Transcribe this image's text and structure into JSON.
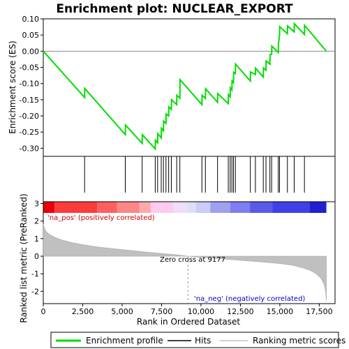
{
  "chart_data": {
    "type": "line",
    "title": "Enrichment plot: NUCLEAR_EXPORT",
    "xlabel": "Rank in Ordered Dataset",
    "ylabel_top": "Enrichment score (ES)",
    "ylabel_bottom": "Ranked list metric (PreRanked)",
    "xlim": [
      0,
      18500
    ],
    "es_ylim": [
      -0.325,
      0.1
    ],
    "metric_ylim": [
      -2.7,
      3.1
    ],
    "x_ticks": [
      0,
      2500,
      5000,
      7500,
      10000,
      12500,
      15000,
      17500
    ],
    "x_tick_labels": [
      "0",
      "2,500",
      "5,000",
      "7,500",
      "10,000",
      "12,500",
      "15,000",
      "17,500"
    ],
    "es_ticks": [
      0.1,
      0.05,
      0.0,
      -0.05,
      -0.1,
      -0.15,
      -0.2,
      -0.25,
      -0.3
    ],
    "es_tick_labels": [
      "0.10",
      "0.05",
      "0.00",
      "-0.05",
      "-0.10",
      "-0.15",
      "-0.20",
      "-0.25",
      "-0.30"
    ],
    "metric_ticks": [
      3,
      2,
      1,
      0,
      -1,
      -2
    ],
    "metric_tick_labels": [
      "3",
      "2",
      "1",
      "0",
      "-1",
      "-2"
    ],
    "series": [
      {
        "name": "Enrichment profile",
        "color": "#00dd00",
        "x": [
          0,
          2620,
          2630,
          5200,
          5210,
          6270,
          6280,
          7100,
          7110,
          7250,
          7260,
          7480,
          7490,
          7620,
          7630,
          7780,
          7790,
          7950,
          7960,
          8120,
          8130,
          8460,
          8470,
          8660,
          8670,
          10060,
          10070,
          10280,
          10290,
          11050,
          11060,
          11730,
          11740,
          11850,
          11860,
          11960,
          11970,
          12060,
          12070,
          12180,
          12190,
          13130,
          13140,
          13450,
          13460,
          13950,
          13960,
          14120,
          14130,
          14370,
          14380,
          14480,
          14490,
          14900,
          14910,
          14980,
          14990,
          15480,
          15490,
          15910,
          15920,
          16560,
          16570,
          17950
        ],
        "y": [
          0.0,
          -0.143,
          -0.115,
          -0.258,
          -0.228,
          -0.285,
          -0.258,
          -0.302,
          -0.275,
          -0.283,
          -0.255,
          -0.268,
          -0.238,
          -0.246,
          -0.216,
          -0.223,
          -0.194,
          -0.2,
          -0.172,
          -0.18,
          -0.15,
          -0.165,
          -0.136,
          -0.145,
          -0.088,
          -0.165,
          -0.136,
          -0.146,
          -0.116,
          -0.158,
          -0.131,
          -0.162,
          -0.134,
          -0.141,
          -0.113,
          -0.12,
          -0.092,
          -0.097,
          -0.065,
          -0.069,
          -0.04,
          -0.092,
          -0.064,
          -0.072,
          -0.052,
          -0.08,
          -0.052,
          -0.059,
          -0.03,
          -0.04,
          -0.011,
          -0.01,
          0.016,
          -0.004,
          0.022,
          0.05,
          0.076,
          0.054,
          0.078,
          0.06,
          0.085,
          0.052,
          0.08,
          0.0
        ]
      }
    ],
    "hits": [
      2620,
      5200,
      6270,
      7100,
      7250,
      7480,
      7620,
      7780,
      7950,
      8120,
      8460,
      8660,
      10060,
      10280,
      11050,
      11730,
      11850,
      11960,
      12060,
      12180,
      13130,
      13450,
      13950,
      14120,
      14370,
      14480,
      14900,
      14980,
      15480,
      15910,
      16560
    ],
    "metric_curve": {
      "x": [
        0,
        50,
        150,
        300,
        500,
        800,
        1200,
        1800,
        2500,
        3500,
        4500,
        5500,
        6500,
        7500,
        8500,
        9177,
        10000,
        11000,
        12000,
        13000,
        14000,
        15000,
        15800,
        16400,
        16900,
        17300,
        17600,
        17800,
        17900,
        17950
      ],
      "y": [
        1.85,
        1.65,
        1.45,
        1.3,
        1.18,
        1.05,
        0.92,
        0.78,
        0.66,
        0.52,
        0.42,
        0.33,
        0.24,
        0.16,
        0.08,
        0.0,
        -0.06,
        -0.13,
        -0.2,
        -0.27,
        -0.34,
        -0.42,
        -0.52,
        -0.65,
        -0.8,
        -1.0,
        -1.25,
        -1.6,
        -2.0,
        -2.55
      ]
    },
    "zero_cross_label": "Zero cross at 9177",
    "zero_cross_x": 9177,
    "pos_label": "'na_pos' (positively correlated)",
    "neg_label": "'na_neg' (negatively correlated)",
    "legend": [
      {
        "label": "Enrichment profile",
        "kind": "line",
        "color": "#00dd00"
      },
      {
        "label": "Hits",
        "kind": "line",
        "color": "#000000"
      },
      {
        "label": "Ranking metric scores",
        "kind": "line",
        "color": "#c0c0c0"
      }
    ],
    "heatmap_segments": [
      {
        "to": 0.04,
        "color": "#e8000a"
      },
      {
        "to": 0.19,
        "color": "#fc3b3b"
      },
      {
        "to": 0.26,
        "color": "#fd6060"
      },
      {
        "to": 0.34,
        "color": "#fd8686"
      },
      {
        "to": 0.38,
        "color": "#ffaaaa"
      },
      {
        "to": 0.46,
        "color": "#ffcaef"
      },
      {
        "to": 0.51,
        "color": "#f0ddf8"
      },
      {
        "to": 0.54,
        "color": "#dedef8"
      },
      {
        "to": 0.59,
        "color": "#ccccf8"
      },
      {
        "to": 0.66,
        "color": "#a0a0ef"
      },
      {
        "to": 0.73,
        "color": "#7e7ef0"
      },
      {
        "to": 0.81,
        "color": "#5a5ae8"
      },
      {
        "to": 0.94,
        "color": "#4040e6"
      },
      {
        "to": 1.0,
        "color": "#2020d0"
      }
    ]
  }
}
